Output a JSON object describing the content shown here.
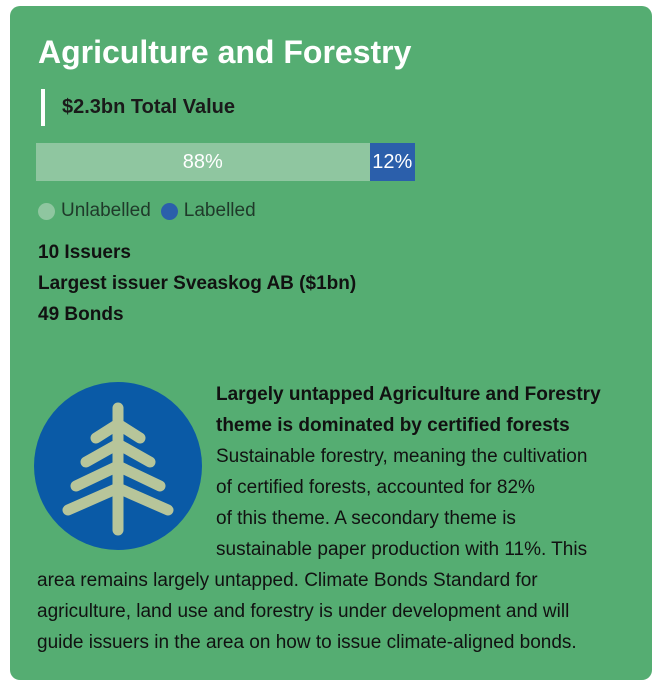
{
  "card": {
    "title": "Agriculture and Forestry",
    "total": "$2.3bn Total Value",
    "stats": [
      "10 Issuers",
      "Largest issuer Sveaskog AB ($1bn)",
      "49 Bonds"
    ],
    "heading_lines": [
      "Largely untapped Agriculture and Forestry",
      "theme is dominated by certified forests"
    ],
    "body_lines": [
      "Sustainable forestry, meaning the cultivation",
      "of certified forests, accounted for 82%",
      "of this theme. A secondary theme is",
      "sustainable paper production with 11%. This",
      "area remains largely untapped. Climate Bonds Standard for",
      "agriculture, land use and forestry is under development and will",
      "guide issuers in the area on how to issue climate-aligned bonds."
    ]
  },
  "chart_data": {
    "type": "stacked-bar",
    "xlim": [
      0,
      100
    ],
    "series": [
      {
        "name": "Unlabelled",
        "color": "#8fc6a0",
        "values": [
          88
        ],
        "value_labels": [
          "88%"
        ]
      },
      {
        "name": "Labelled",
        "color": "#2b5fab",
        "values": [
          12
        ],
        "value_labels": [
          "12%"
        ]
      }
    ]
  }
}
